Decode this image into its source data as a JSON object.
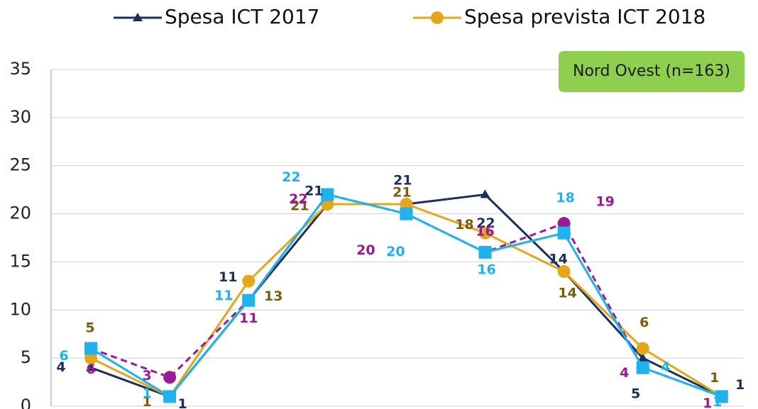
{
  "chart_data": {
    "type": "line",
    "annotation": "Nord Ovest (n=163)",
    "categories": [
      null,
      null,
      null,
      null,
      null,
      null,
      null,
      null,
      null
    ],
    "series": [
      {
        "name": "Spesa ICT 2017",
        "color": "#1b2f5e",
        "label_color": "#1b2f5e",
        "marker": "triangle",
        "dashed": false,
        "values": [
          4,
          1,
          11,
          21,
          21,
          22,
          14,
          5,
          1
        ]
      },
      {
        "name": "Spesa prevista ICT 2018",
        "color": "#e6a61c",
        "label_color": "#7a5c0e",
        "marker": "circle",
        "dashed": false,
        "values": [
          5,
          1,
          13,
          21,
          21,
          18,
          14,
          6,
          1
        ]
      },
      {
        "color": "#961c96",
        "label_color": "#961c96",
        "marker": "circle",
        "dashed": true,
        "values": [
          6,
          3,
          11,
          22,
          20,
          16,
          19,
          4,
          1
        ]
      },
      {
        "color": "#1eb3ee",
        "label_color": "#1eb3ee",
        "marker": "square",
        "dashed": false,
        "values": [
          6,
          1,
          11,
          22,
          20,
          16,
          18,
          4,
          1
        ]
      }
    ],
    "ylim": [
      0,
      35
    ],
    "yticks": [
      0,
      5,
      10,
      15,
      20,
      25,
      30,
      35
    ],
    "grid": true
  }
}
